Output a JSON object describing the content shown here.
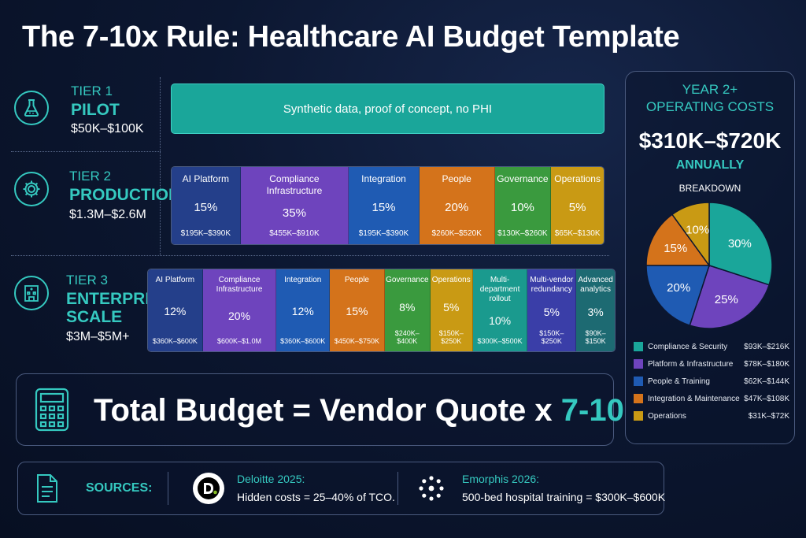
{
  "title": {
    "main": "The 7-10x Rule: Healthcare AI Budget Template"
  },
  "tier1": {
    "label": "TIER 1",
    "name": "PILOT",
    "price": "$50K–$100K",
    "icon": "flask-icon",
    "description": "Synthetic data, proof of concept, no PHI"
  },
  "tier2": {
    "label": "TIER 2",
    "name": "PRODUCTION",
    "price": "$1.3M–$2.6M",
    "icon": "gear-icon",
    "items": [
      {
        "name": "AI Platform",
        "pct": "15%",
        "range": "$195K–$390K",
        "share": 15,
        "color": "#243f8a"
      },
      {
        "name": "Compliance Infrastructure",
        "pct": "35%",
        "range": "$455K–$910K",
        "share": 35,
        "color": "#6e44bd"
      },
      {
        "name": "Integration",
        "pct": "15%",
        "range": "$195K–$390K",
        "share": 15,
        "color": "#1f5bb3"
      },
      {
        "name": "People",
        "pct": "20%",
        "range": "$260K–$520K",
        "share": 20,
        "color": "#d4731b"
      },
      {
        "name": "Governance",
        "pct": "10%",
        "range": "$130K–$260K",
        "share": 10,
        "color": "#3a9a3e"
      },
      {
        "name": "Operations",
        "pct": "5%",
        "range": "$65K–$130K",
        "share": 5,
        "color": "#c99a14"
      }
    ]
  },
  "tier3": {
    "label": "TIER 3",
    "name_line1": "ENTERPRISE",
    "name_line2": "SCALE",
    "price": "$3M–$5M+",
    "icon": "building-icon",
    "items": [
      {
        "name": "AI Platform",
        "pct": "12%",
        "range": "$360K–$600K",
        "color": "#243f8a"
      },
      {
        "name": "Compliance Infrastructure",
        "pct": "20%",
        "range": "$600K–$1.0M",
        "color": "#6e44bd"
      },
      {
        "name": "Integration",
        "pct": "12%",
        "range": "$360K–$600K",
        "color": "#1f5bb3"
      },
      {
        "name": "People",
        "pct": "15%",
        "range": "$450K–$750K",
        "color": "#d4731b"
      },
      {
        "name": "Governance",
        "pct": "8%",
        "range": "$240K–$400K",
        "color": "#3a9a3e"
      },
      {
        "name": "Operations",
        "pct": "5%",
        "range": "$150K–$250K",
        "color": "#c99a14"
      },
      {
        "name": "Multi-department rollout",
        "pct": "10%",
        "range": "$300K–$500K",
        "color": "#1a9a8e"
      },
      {
        "name": "Multi-vendor redundancy",
        "pct": "5%",
        "range": "$150K–$250K",
        "color": "#3a3ea8"
      },
      {
        "name": "Advanced analytics",
        "pct": "3%",
        "range": "$90K–$150K",
        "color": "#1d6a72"
      }
    ]
  },
  "operating": {
    "title_line1": "YEAR 2+",
    "title_line2": "OPERATING COSTS",
    "amount": "$310K–$720K",
    "period": "ANNUALLY",
    "breakdown_label": "BREAKDOWN"
  },
  "chart_data": {
    "type": "pie",
    "title": "BREAKDOWN",
    "slices": [
      {
        "name": "Compliance & Security",
        "value": 30,
        "label": "30%",
        "range": "$93K–$216K",
        "color": "#1aa69a"
      },
      {
        "name": "Platform & Infrastructure",
        "value": 25,
        "label": "25%",
        "range": "$78K–$180K",
        "color": "#6e44bd"
      },
      {
        "name": "People & Training",
        "value": 20,
        "label": "20%",
        "range": "$62K–$144K",
        "color": "#1f5bb3"
      },
      {
        "name": "Integration & Maintenance",
        "value": 15,
        "label": "15%",
        "range": "$47K–$108K",
        "color": "#d4731b"
      },
      {
        "name": "Operations",
        "value": 10,
        "label": "10%",
        "range": "$31K–$72K",
        "color": "#c99a14"
      }
    ]
  },
  "total": {
    "text_part1": "Total Budget = Vendor Quote x ",
    "text_part2": "7-10",
    "icon": "calculator-icon"
  },
  "sources": {
    "label": "SOURCES:",
    "icon": "document-icon",
    "items": [
      {
        "logo": "D.",
        "title": "Deloitte 2025:",
        "text": "Hidden costs = 25–40% of TCO.",
        "icon": "deloitte-logo"
      },
      {
        "title": "Emorphis 2026:",
        "text": "500-bed hospital training = $300K–$600K",
        "icon": "emorphis-logo"
      }
    ]
  },
  "colors": {
    "accent": "#35c9c0",
    "background": "#0c1731",
    "border": "#4a5a7e"
  }
}
